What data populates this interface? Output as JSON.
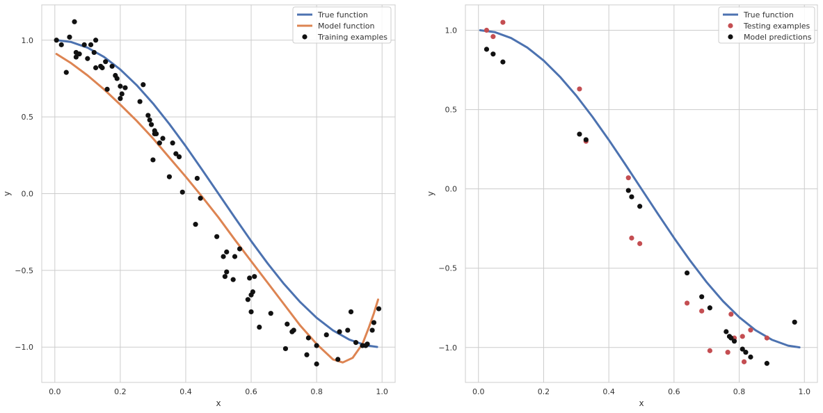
{
  "chart_data": [
    {
      "type": "scatter",
      "title": "",
      "xlabel": "x",
      "ylabel": "y",
      "xlim": [
        -0.04,
        1.04
      ],
      "ylim": [
        -1.23,
        1.23
      ],
      "xticks": [
        0.0,
        0.2,
        0.4,
        0.6,
        0.8,
        1.0
      ],
      "xtick_labels": [
        "0.0",
        "0.2",
        "0.4",
        "0.6",
        "0.8",
        "1.0"
      ],
      "yticks": [
        -1.0,
        -0.5,
        0.0,
        0.5,
        1.0
      ],
      "ytick_labels": [
        "−1.0",
        "−0.5",
        "0.0",
        "0.5",
        "1.0"
      ],
      "grid": true,
      "legend_position": "top-right",
      "series": [
        {
          "name": "True function",
          "kind": "line",
          "color": "#4c72b0",
          "x": [
            0.005,
            0.05,
            0.1,
            0.15,
            0.2,
            0.25,
            0.3,
            0.35,
            0.4,
            0.45,
            0.5,
            0.55,
            0.6,
            0.65,
            0.7,
            0.75,
            0.8,
            0.85,
            0.9,
            0.95,
            0.985
          ],
          "y": [
            1.0,
            0.988,
            0.951,
            0.891,
            0.809,
            0.707,
            0.588,
            0.454,
            0.309,
            0.156,
            0.0,
            -0.156,
            -0.309,
            -0.454,
            -0.588,
            -0.707,
            -0.809,
            -0.891,
            -0.951,
            -0.988,
            -0.999
          ]
        },
        {
          "name": "Model function",
          "kind": "line",
          "color": "#dd8452",
          "x": [
            0.005,
            0.05,
            0.1,
            0.15,
            0.2,
            0.25,
            0.3,
            0.35,
            0.4,
            0.45,
            0.5,
            0.55,
            0.6,
            0.65,
            0.7,
            0.75,
            0.8,
            0.85,
            0.88,
            0.91,
            0.94,
            0.96,
            0.975,
            0.988
          ],
          "y": [
            0.91,
            0.85,
            0.77,
            0.68,
            0.58,
            0.475,
            0.36,
            0.235,
            0.11,
            -0.02,
            -0.155,
            -0.3,
            -0.44,
            -0.58,
            -0.72,
            -0.86,
            -0.98,
            -1.08,
            -1.1,
            -1.07,
            -0.98,
            -0.87,
            -0.78,
            -0.69
          ]
        },
        {
          "name": "Training examples",
          "kind": "scatter",
          "color": "#111111",
          "x": [
            0.005,
            0.02,
            0.035,
            0.045,
            0.06,
            0.065,
            0.065,
            0.075,
            0.09,
            0.1,
            0.11,
            0.12,
            0.125,
            0.125,
            0.14,
            0.145,
            0.155,
            0.16,
            0.175,
            0.185,
            0.19,
            0.2,
            0.2,
            0.205,
            0.215,
            0.26,
            0.27,
            0.285,
            0.29,
            0.295,
            0.3,
            0.305,
            0.305,
            0.31,
            0.32,
            0.33,
            0.35,
            0.36,
            0.37,
            0.38,
            0.39,
            0.43,
            0.435,
            0.445,
            0.495,
            0.515,
            0.52,
            0.525,
            0.525,
            0.545,
            0.55,
            0.565,
            0.59,
            0.595,
            0.6,
            0.6,
            0.605,
            0.61,
            0.625,
            0.66,
            0.705,
            0.71,
            0.725,
            0.73,
            0.77,
            0.775,
            0.8,
            0.8,
            0.83,
            0.865,
            0.87,
            0.895,
            0.905,
            0.92,
            0.94,
            0.95,
            0.955,
            0.97,
            0.975,
            0.99
          ],
          "y": [
            1.0,
            0.97,
            0.79,
            1.02,
            1.12,
            0.89,
            0.92,
            0.91,
            0.97,
            0.88,
            0.97,
            0.92,
            1.0,
            0.82,
            0.83,
            0.82,
            0.86,
            0.68,
            0.83,
            0.77,
            0.75,
            0.62,
            0.7,
            0.65,
            0.69,
            0.6,
            0.71,
            0.51,
            0.48,
            0.45,
            0.22,
            0.41,
            0.39,
            0.39,
            0.33,
            0.36,
            0.11,
            0.33,
            0.26,
            0.24,
            0.01,
            -0.2,
            0.1,
            -0.03,
            -0.28,
            -0.41,
            -0.54,
            -0.51,
            -0.38,
            -0.56,
            -0.41,
            -0.36,
            -0.69,
            -0.55,
            -0.66,
            -0.77,
            -0.64,
            -0.54,
            -0.87,
            -0.78,
            -1.01,
            -0.85,
            -0.9,
            -0.89,
            -1.05,
            -0.94,
            -0.99,
            -1.11,
            -0.92,
            -1.08,
            -0.9,
            -0.89,
            -0.77,
            -0.97,
            -0.99,
            -0.99,
            -0.98,
            -0.89,
            -0.84,
            -0.75
          ]
        }
      ]
    },
    {
      "type": "scatter",
      "title": "",
      "xlabel": "x",
      "ylabel": "y",
      "xlim": [
        -0.04,
        1.04
      ],
      "ylim": [
        -1.22,
        1.16
      ],
      "xticks": [
        0.0,
        0.2,
        0.4,
        0.6,
        0.8,
        1.0
      ],
      "xtick_labels": [
        "0.0",
        "0.2",
        "0.4",
        "0.6",
        "0.8",
        "1.0"
      ],
      "yticks": [
        -1.0,
        -0.5,
        0.0,
        0.5,
        1.0
      ],
      "ytick_labels": [
        "−1.0",
        "−0.5",
        "0.0",
        "0.5",
        "1.0"
      ],
      "grid": true,
      "legend_position": "top-right",
      "series": [
        {
          "name": "True function",
          "kind": "line",
          "color": "#4c72b0",
          "x": [
            0.005,
            0.05,
            0.1,
            0.15,
            0.2,
            0.25,
            0.3,
            0.35,
            0.4,
            0.45,
            0.5,
            0.55,
            0.6,
            0.65,
            0.7,
            0.75,
            0.8,
            0.85,
            0.9,
            0.95,
            0.985
          ],
          "y": [
            1.0,
            0.988,
            0.951,
            0.891,
            0.809,
            0.707,
            0.588,
            0.454,
            0.309,
            0.156,
            0.0,
            -0.156,
            -0.309,
            -0.454,
            -0.588,
            -0.707,
            -0.809,
            -0.891,
            -0.951,
            -0.988,
            -0.999
          ]
        },
        {
          "name": "Testing examples",
          "kind": "scatter",
          "color": "#c44e52",
          "x": [
            0.025,
            0.045,
            0.075,
            0.31,
            0.33,
            0.46,
            0.47,
            0.495,
            0.64,
            0.685,
            0.71,
            0.765,
            0.775,
            0.785,
            0.81,
            0.815,
            0.835,
            0.885
          ],
          "y": [
            1.0,
            0.96,
            1.05,
            0.63,
            0.3,
            0.07,
            -0.31,
            -0.345,
            -0.72,
            -0.77,
            -1.02,
            -1.03,
            -0.79,
            -0.94,
            -0.93,
            -1.09,
            -0.89,
            -0.94
          ]
        },
        {
          "name": "Model predictions",
          "kind": "scatter",
          "color": "#111111",
          "x": [
            0.025,
            0.045,
            0.075,
            0.31,
            0.33,
            0.46,
            0.47,
            0.495,
            0.64,
            0.685,
            0.71,
            0.76,
            0.77,
            0.775,
            0.785,
            0.81,
            0.82,
            0.835,
            0.885,
            0.97
          ],
          "y": [
            0.88,
            0.85,
            0.8,
            0.345,
            0.31,
            -0.01,
            -0.05,
            -0.11,
            -0.53,
            -0.68,
            -0.75,
            -0.9,
            -0.93,
            -0.94,
            -0.96,
            -1.01,
            -1.03,
            -1.06,
            -1.1,
            -0.84
          ]
        }
      ]
    }
  ]
}
